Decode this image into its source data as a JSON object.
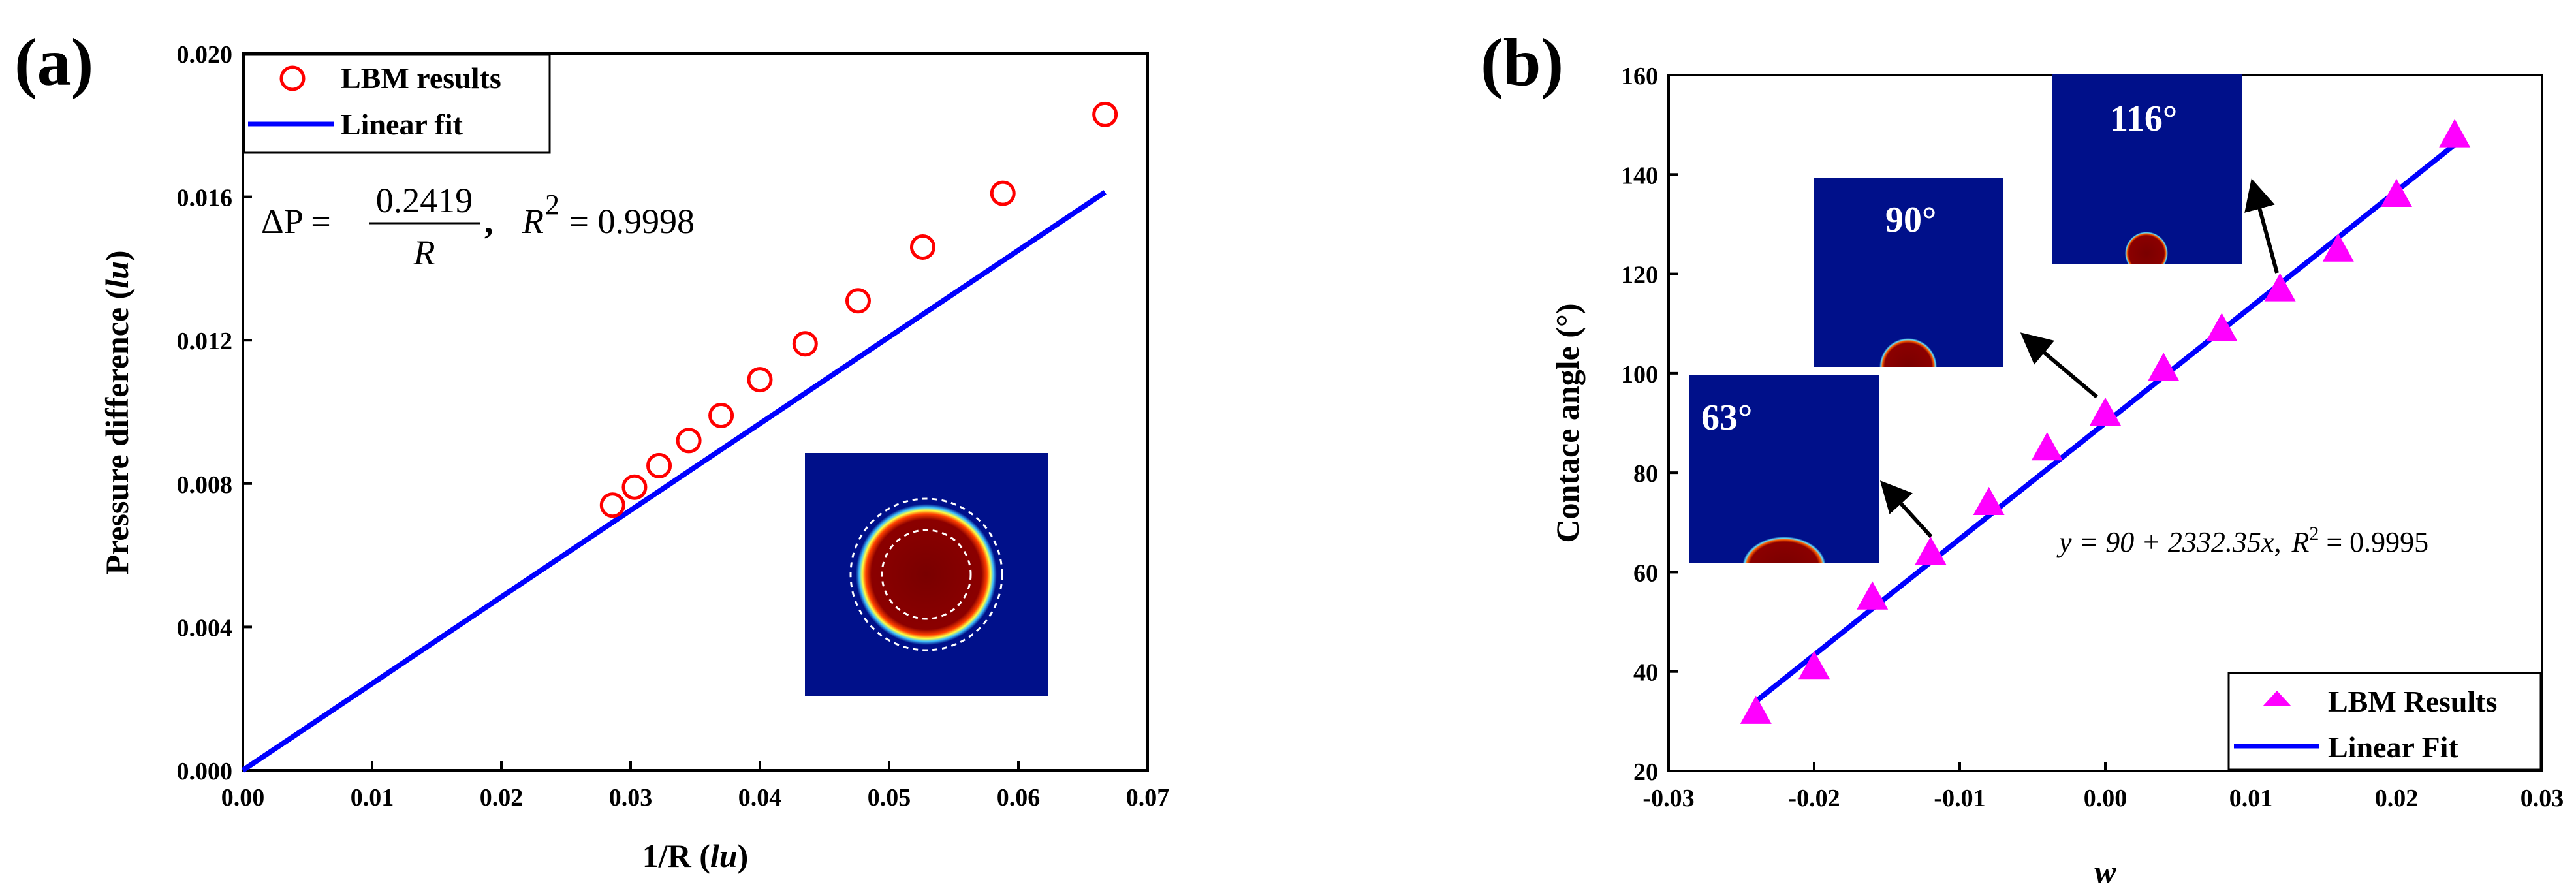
{
  "chart_data": [
    {
      "panel": "(a)",
      "type": "scatter",
      "xlabel_main": "1/R (",
      "xlabel_unit": "lu",
      "xlabel_close": ")",
      "ylabel_main": "Pressure difference (",
      "ylabel_unit": "lu",
      "ylabel_close": ")",
      "xlim": [
        0,
        0.07
      ],
      "ylim": [
        0,
        0.02
      ],
      "xticks": [
        "0.00",
        "0.01",
        "0.02",
        "0.03",
        "0.04",
        "0.05",
        "0.06",
        "0.07"
      ],
      "yticks": [
        "0.000",
        "0.004",
        "0.008",
        "0.012",
        "0.016",
        "0.020"
      ],
      "series": [
        {
          "name": "LBM results",
          "marker": "circle",
          "color": "#ff0000",
          "x": [
            0.0286,
            0.0303,
            0.0322,
            0.0345,
            0.037,
            0.04,
            0.0435,
            0.0476,
            0.0526,
            0.0588,
            0.0667
          ],
          "y": [
            0.0074,
            0.0079,
            0.0085,
            0.0092,
            0.0099,
            0.0109,
            0.0119,
            0.0131,
            0.0146,
            0.0161,
            0.0183
          ]
        },
        {
          "name": "Linear fit",
          "line": true,
          "color": "#0000ff",
          "x": [
            0,
            0.0667
          ],
          "y": [
            0,
            0.01613
          ]
        }
      ],
      "equation": {
        "lhs": "ΔP =",
        "numerator": "0.2419",
        "denominator": "R",
        "sep": ",",
        "r2_label": "R",
        "r2_sup": "2",
        "r2_value": " = 0.9998"
      },
      "legend_position": "top-left"
    },
    {
      "panel": "(b)",
      "type": "scatter",
      "xlabel": "w",
      "ylabel": "Contace angle (°)",
      "xlim": [
        -0.03,
        0.03
      ],
      "ylim": [
        20,
        160
      ],
      "xticks": [
        "-0.03",
        "-0.02",
        "-0.01",
        "0.00",
        "0.01",
        "0.02",
        "0.03"
      ],
      "yticks": [
        "20",
        "40",
        "60",
        "80",
        "100",
        "120",
        "140",
        "160"
      ],
      "series": [
        {
          "name": "LBM Results",
          "marker": "triangle",
          "color": "#ff00ff",
          "x": [
            -0.024,
            -0.02,
            -0.016,
            -0.012,
            -0.008,
            -0.004,
            0.0,
            0.004,
            0.008,
            0.012,
            0.016,
            0.02,
            0.024
          ],
          "y": [
            32,
            41,
            55,
            64,
            74,
            85,
            92,
            101,
            109,
            117,
            125,
            136,
            148
          ]
        },
        {
          "name": "Linear Fit",
          "line": true,
          "color": "#0000ff",
          "x": [
            -0.024,
            0.024
          ],
          "y": [
            34,
            146
          ]
        }
      ],
      "equation": {
        "text": "y = 90 + 2332.35x,",
        "r2_label": "R",
        "r2_sup": "2",
        "r2_value": " = 0.9995"
      },
      "insets": [
        "63°",
        "90°",
        "116°"
      ],
      "legend_position": "bottom-right"
    }
  ]
}
